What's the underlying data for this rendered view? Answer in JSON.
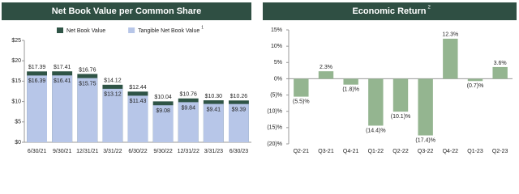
{
  "chart_data": [
    {
      "type": "bar",
      "title": "Net Book Value per Common Share",
      "categories": [
        "6/30/21",
        "9/30/21",
        "12/31/21",
        "3/31/22",
        "6/30/22",
        "9/30/22",
        "12/31/22",
        "3/31/23",
        "6/30/23"
      ],
      "series": [
        {
          "name": "Net Book Value",
          "color": "#2f5446",
          "values": [
            17.39,
            17.41,
            16.76,
            14.12,
            12.44,
            10.04,
            10.76,
            10.3,
            10.26
          ],
          "value_labels": [
            "$17.39",
            "$17.41",
            "$16.76",
            "$14.12",
            "$12.44",
            "$10.04",
            "$10.76",
            "$10.30",
            "$10.26"
          ]
        },
        {
          "name": "Tangible Net Book Value",
          "note": "1",
          "color": "#b7c6e8",
          "values": [
            16.39,
            16.41,
            15.75,
            13.12,
            11.43,
            9.08,
            9.84,
            9.41,
            9.39
          ],
          "value_labels": [
            "$16.39",
            "$16.41",
            "$15.75",
            "$13.12",
            "$11.43",
            "$9.08",
            "$9.84",
            "$9.41",
            "$9.39"
          ]
        }
      ],
      "ylim": [
        0,
        25
      ],
      "yticks": [
        {
          "value": 0,
          "label": "$0"
        },
        {
          "value": 5,
          "label": "$5"
        },
        {
          "value": 10,
          "label": "$10"
        },
        {
          "value": 15,
          "label": "$15"
        },
        {
          "value": 20,
          "label": "$20"
        },
        {
          "value": 25,
          "label": "$25"
        }
      ],
      "legend": "top"
    },
    {
      "type": "bar",
      "title": "Economic Return",
      "title_note": "2",
      "categories": [
        "Q2-21",
        "Q3-21",
        "Q4-21",
        "Q1-22",
        "Q2-22",
        "Q3-22",
        "Q4-22",
        "Q1-23",
        "Q2-23"
      ],
      "values": [
        -5.5,
        2.3,
        -1.8,
        -14.4,
        -10.1,
        -17.4,
        12.3,
        -0.7,
        3.6
      ],
      "value_labels": [
        "(5.5)%",
        "2.3%",
        "(1.8)%",
        "(14.4)%",
        "(10.1)%",
        "(17.4)%",
        "12.3%",
        "(0.7)%",
        "3.6%"
      ],
      "color": "#94b590",
      "ylim": [
        -20,
        15
      ],
      "yticks": [
        {
          "value": -20,
          "label": "(20)%"
        },
        {
          "value": -15,
          "label": "(15)%"
        },
        {
          "value": -10,
          "label": "(10)%"
        },
        {
          "value": -5,
          "label": "(5)%"
        },
        {
          "value": 0,
          "label": "0%"
        },
        {
          "value": 5,
          "label": "5%"
        },
        {
          "value": 10,
          "label": "10%"
        },
        {
          "value": 15,
          "label": "15%"
        }
      ]
    }
  ]
}
